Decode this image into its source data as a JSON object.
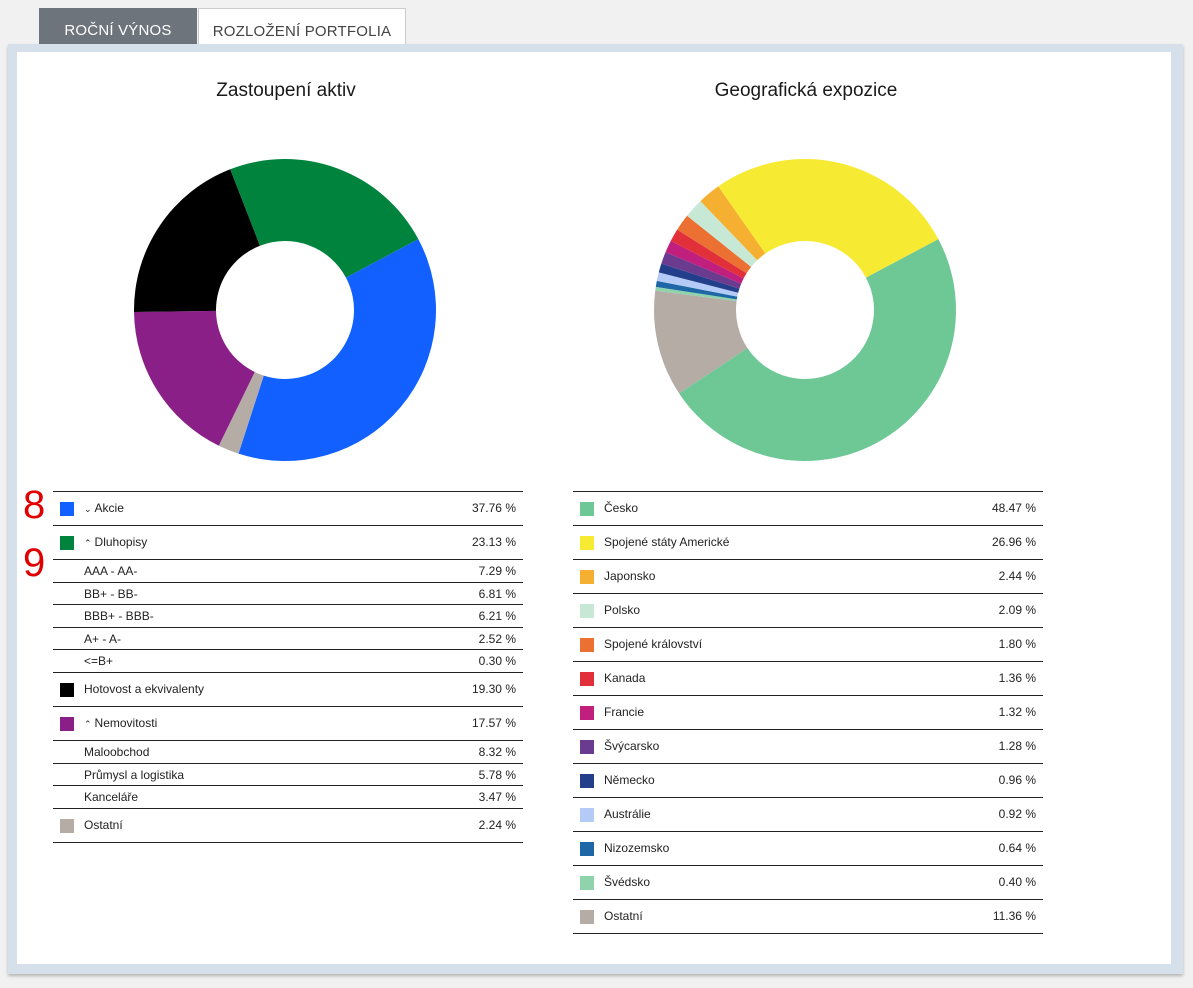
{
  "tabs": [
    {
      "label": "ROČNÍ VÝNOS",
      "active": false
    },
    {
      "label": "ROZLOŽENÍ PORTFOLIA",
      "active": true
    }
  ],
  "markers": [
    "8",
    "9"
  ],
  "chart_data": [
    {
      "type": "pie",
      "title": "Zastoupení aktiv",
      "donut": true,
      "slices": [
        {
          "label": "Akcie",
          "value": 37.76,
          "display": "37.76 %",
          "color": "#1160ff",
          "expandable": true,
          "expanded": false
        },
        {
          "label": "Ostatní",
          "value": 2.24,
          "display": "2.24 %",
          "color": "#b5aca6"
        },
        {
          "label": "Nemovitosti",
          "value": 17.57,
          "display": "17.57 %",
          "color": "#8a2087",
          "expandable": true,
          "expanded": true
        },
        {
          "label": "Hotovost a ekvivalenty",
          "value": 19.3,
          "display": "19.30 %",
          "color": "#000000"
        },
        {
          "label": "Dluhopisy",
          "value": 23.13,
          "display": "23.13 %",
          "color": "#00843d",
          "expandable": true,
          "expanded": true
        }
      ],
      "legend": [
        {
          "label": "Akcie",
          "value": "37.76 %",
          "color": "#1160ff",
          "chevron": "⌄",
          "subs": []
        },
        {
          "label": "Dluhopisy",
          "value": "23.13 %",
          "color": "#00843d",
          "chevron": "⌃",
          "subs": [
            {
              "label": "AAA - AA-",
              "value": "7.29 %"
            },
            {
              "label": "BB+ - BB-",
              "value": "6.81 %"
            },
            {
              "label": "BBB+ - BBB-",
              "value": "6.21 %"
            },
            {
              "label": "A+ - A-",
              "value": "2.52 %"
            },
            {
              "label": "<=B+",
              "value": "0.30 %"
            }
          ]
        },
        {
          "label": "Hotovost a ekvivalenty",
          "value": "19.30 %",
          "color": "#000000",
          "chevron": "",
          "subs": []
        },
        {
          "label": "Nemovitosti",
          "value": "17.57 %",
          "color": "#8a2087",
          "chevron": "⌃",
          "subs": [
            {
              "label": "Maloobchod",
              "value": "8.32 %"
            },
            {
              "label": "Průmysl a logistika",
              "value": "5.78 %"
            },
            {
              "label": "Kanceláře",
              "value": "3.47 %"
            }
          ]
        },
        {
          "label": "Ostatní",
          "value": "2.24 %",
          "color": "#b5aca6",
          "chevron": "",
          "subs": []
        }
      ]
    },
    {
      "type": "pie",
      "title": "Geografická expozice",
      "donut": true,
      "slices": [
        {
          "label": "Česko",
          "value": 48.47,
          "display": "48.47 %",
          "color": "#6dc896"
        },
        {
          "label": "Ostatní",
          "value": 11.36,
          "display": "11.36 %",
          "color": "#b5aca6"
        },
        {
          "label": "Švédsko",
          "value": 0.4,
          "display": "0.40 %",
          "color": "#8fd3ad"
        },
        {
          "label": "Nizozemsko",
          "value": 0.64,
          "display": "0.64 %",
          "color": "#1d67a6"
        },
        {
          "label": "Austrálie",
          "value": 0.92,
          "display": "0.92 %",
          "color": "#b3cbf6"
        },
        {
          "label": "Německo",
          "value": 0.96,
          "display": "0.96 %",
          "color": "#233e8b"
        },
        {
          "label": "Švýcarsko",
          "value": 1.28,
          "display": "1.28 %",
          "color": "#6a3b8f"
        },
        {
          "label": "Francie",
          "value": 1.32,
          "display": "1.32 %",
          "color": "#c01f7d"
        },
        {
          "label": "Kanada",
          "value": 1.36,
          "display": "1.36 %",
          "color": "#e1303a"
        },
        {
          "label": "Spojené království",
          "value": 1.8,
          "display": "1.80 %",
          "color": "#ec7031"
        },
        {
          "label": "Polsko",
          "value": 2.09,
          "display": "2.09 %",
          "color": "#c8e8d6"
        },
        {
          "label": "Japonsko",
          "value": 2.44,
          "display": "2.44 %",
          "color": "#f5b031"
        },
        {
          "label": "Spojené státy Americké",
          "value": 26.96,
          "display": "26.96 %",
          "color": "#f7ea33"
        }
      ],
      "legend": [
        {
          "label": "Česko",
          "value": "48.47 %",
          "color": "#6dc896"
        },
        {
          "label": "Spojené státy Americké",
          "value": "26.96 %",
          "color": "#f7ea33"
        },
        {
          "label": "Japonsko",
          "value": "2.44 %",
          "color": "#f5b031"
        },
        {
          "label": "Polsko",
          "value": "2.09 %",
          "color": "#c8e8d6"
        },
        {
          "label": "Spojené království",
          "value": "1.80 %",
          "color": "#ec7031"
        },
        {
          "label": "Kanada",
          "value": "1.36 %",
          "color": "#e1303a"
        },
        {
          "label": "Francie",
          "value": "1.32 %",
          "color": "#c01f7d"
        },
        {
          "label": "Švýcarsko",
          "value": "1.28 %",
          "color": "#6a3b8f"
        },
        {
          "label": "Německo",
          "value": "0.96 %",
          "color": "#233e8b"
        },
        {
          "label": "Austrálie",
          "value": "0.92 %",
          "color": "#b3cbf6"
        },
        {
          "label": "Nizozemsko",
          "value": "0.64 %",
          "color": "#1d67a6"
        },
        {
          "label": "Švédsko",
          "value": "0.40 %",
          "color": "#8fd3ad"
        },
        {
          "label": "Ostatní",
          "value": "11.36 %",
          "color": "#b5aca6"
        }
      ]
    }
  ]
}
